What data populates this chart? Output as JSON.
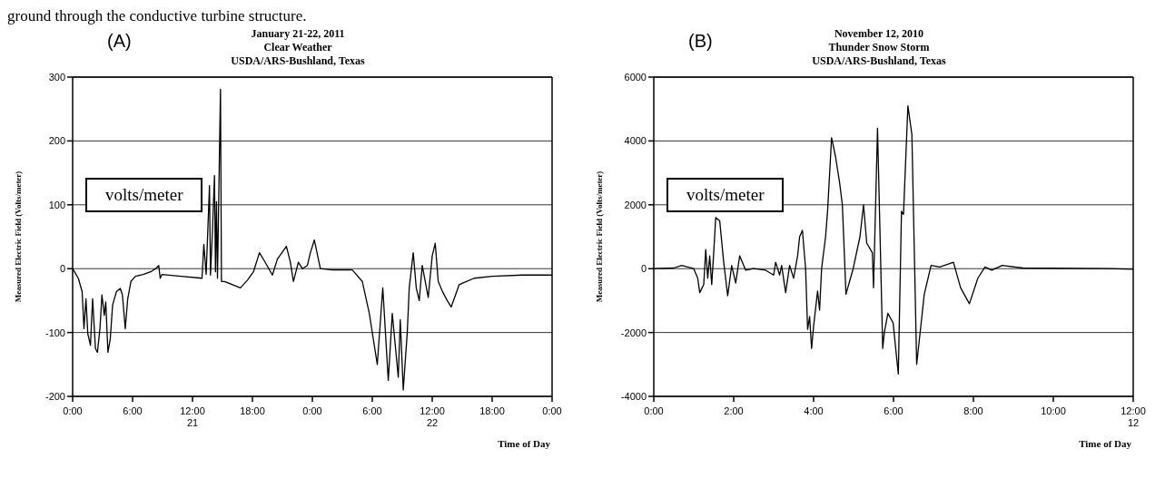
{
  "chart_data": [
    {
      "type": "line",
      "title": "January 21-22, 2011",
      "subtitle": "Clear Weather\nUSDA/ARS-Bushland, Texas",
      "xlabel": "Time of Day",
      "ylabel": "Measured Electric Field (Volts/meter)",
      "annotations": [
        "(A)",
        "volts/meter",
        "ground through the conductive turbine structure."
      ],
      "xlim": [
        "2011-01-21T00:00",
        "2011-01-23T00:00"
      ],
      "xticks": [
        {
          "value": "2011-01-21T00:00",
          "label": "0:00"
        },
        {
          "value": "2011-01-21T06:00",
          "label": "6:00"
        },
        {
          "value": "2011-01-21T12:00",
          "label": "12:00\n21"
        },
        {
          "value": "2011-01-21T18:00",
          "label": "18:00"
        },
        {
          "value": "2011-01-22T00:00",
          "label": "0:00"
        },
        {
          "value": "2011-01-22T06:00",
          "label": "6:00"
        },
        {
          "value": "2011-01-22T12:00",
          "label": "12:00\n22"
        },
        {
          "value": "2011-01-22T18:00",
          "label": "18:00"
        },
        {
          "value": "2011-01-23T00:00",
          "label": "0:00"
        }
      ],
      "ylim": [
        -200,
        300
      ],
      "yticks": [
        -200,
        -100,
        0,
        100,
        200,
        300
      ],
      "grid": "y",
      "legend": false,
      "marker": "none",
      "line_style": "solid",
      "series": [
        {
          "color": "#000000",
          "x": [
            "2011-01-21T00:00",
            "2011-01-21T00:34",
            "2011-01-21T00:57",
            "2011-01-21T01:08",
            "2011-01-21T01:20",
            "2011-01-21T01:31",
            "2011-01-21T01:47",
            "2011-01-21T02:00",
            "2011-01-21T02:17",
            "2011-01-21T02:29",
            "2011-01-21T02:44",
            "2011-01-21T02:56",
            "2011-01-21T03:10",
            "2011-01-21T03:19",
            "2011-01-21T03:32",
            "2011-01-21T03:46",
            "2011-01-21T04:00",
            "2011-01-21T04:23",
            "2011-01-21T04:46",
            "2011-01-21T04:59",
            "2011-01-21T05:16",
            "2011-01-21T05:31",
            "2011-01-21T05:50",
            "2011-01-21T06:17",
            "2011-01-21T07:03",
            "2011-01-21T07:49",
            "2011-01-21T08:23",
            "2011-01-21T08:37",
            "2011-01-21T08:46",
            "2011-01-21T08:57",
            "2011-01-21T10:52",
            "2011-01-21T12:57",
            "2011-01-21T13:08",
            "2011-01-21T13:22",
            "2011-01-21T13:42",
            "2011-01-21T13:48",
            "2011-01-21T14:00",
            "2011-01-21T14:12",
            "2011-01-21T14:18",
            "2011-01-21T14:24",
            "2011-01-21T14:30",
            "2011-01-21T14:48",
            "2011-01-21T14:54",
            "2011-01-21T15:12",
            "2011-01-21T16:00",
            "2011-01-21T16:48",
            "2011-01-21T17:30",
            "2011-01-21T18:06",
            "2011-01-21T18:42",
            "2011-01-21T19:12",
            "2011-01-21T20:00",
            "2011-01-21T20:30",
            "2011-01-21T21:24",
            "2011-01-21T21:48",
            "2011-01-21T22:06",
            "2011-01-21T22:36",
            "2011-01-21T23:00",
            "2011-01-21T23:30",
            "2011-01-21T23:48",
            "2011-01-22T00:12",
            "2011-01-22T00:48",
            "2011-01-22T02:00",
            "2011-01-22T04:00",
            "2011-01-22T05:00",
            "2011-01-22T05:42",
            "2011-01-22T06:30",
            "2011-01-22T07:03",
            "2011-01-22T07:36",
            "2011-01-22T08:00",
            "2011-01-22T08:36",
            "2011-01-22T08:48",
            "2011-01-22T09:06",
            "2011-01-22T09:30",
            "2011-01-22T09:42",
            "2011-01-22T10:06",
            "2011-01-22T10:24",
            "2011-01-22T10:42",
            "2011-01-22T11:00",
            "2011-01-22T11:36",
            "2011-01-22T12:00",
            "2011-01-22T12:18",
            "2011-01-22T12:36",
            "2011-01-22T13:00",
            "2011-01-22T13:30",
            "2011-01-22T13:54",
            "2011-01-22T14:42",
            "2011-01-22T16:12",
            "2011-01-22T18:00",
            "2011-01-22T21:00",
            "2011-01-23T00:00"
          ],
          "values": [
            0,
            -15,
            -36,
            -94,
            -47,
            -102,
            -120,
            -47,
            -125,
            -131,
            -94,
            -41,
            -73,
            -52,
            -131,
            -110,
            -57,
            -36,
            -31,
            -41,
            -94,
            -47,
            -20,
            -12,
            -9,
            -5,
            1,
            5,
            -15,
            -9,
            -12,
            -15,
            38,
            -9,
            130,
            -10,
            60,
            146,
            -5,
            105,
            -15,
            281,
            -20,
            -20,
            -25,
            -30,
            -18,
            -5,
            25,
            12,
            -10,
            15,
            35,
            10,
            -20,
            10,
            0,
            5,
            25,
            45,
            0,
            -2,
            -2,
            -20,
            -70,
            -150,
            -30,
            -175,
            -70,
            -170,
            -80,
            -190,
            -100,
            -30,
            25,
            -30,
            -50,
            5,
            -45,
            20,
            40,
            -20,
            -35,
            -50,
            -60,
            -25,
            -15,
            -12,
            -10,
            -10
          ]
        }
      ]
    },
    {
      "type": "line",
      "title": "November 12, 2010",
      "subtitle": "Thunder Snow Storm\nUSDA/ARS-Bushland, Texas",
      "xlabel": "Time of Day",
      "ylabel": "Measured Electric Field (Volts/meter)",
      "annotations": [
        "(B)",
        "volts/meter"
      ],
      "xlim": [
        0,
        12
      ],
      "xticks": [
        {
          "value": 0,
          "label": "0:00"
        },
        {
          "value": 2,
          "label": "2:00"
        },
        {
          "value": 4,
          "label": "4:00"
        },
        {
          "value": 6,
          "label": "6:00"
        },
        {
          "value": 8,
          "label": "8:00"
        },
        {
          "value": 10,
          "label": "10:00"
        },
        {
          "value": 12,
          "label": "12:00\n12"
        }
      ],
      "ylim": [
        -4000,
        6000
      ],
      "yticks": [
        -4000,
        -2000,
        0,
        2000,
        4000,
        6000
      ],
      "grid": "y",
      "legend": false,
      "marker": "none",
      "line_style": "solid",
      "series": [
        {
          "color": "#000000",
          "x": [
            0,
            0.5,
            0.7,
            1.0,
            1.1,
            1.15,
            1.25,
            1.3,
            1.35,
            1.4,
            1.45,
            1.5,
            1.55,
            1.65,
            1.75,
            1.85,
            1.95,
            2.05,
            2.15,
            2.3,
            2.5,
            2.8,
            3.0,
            3.05,
            3.15,
            3.2,
            3.3,
            3.4,
            3.5,
            3.6,
            3.65,
            3.72,
            3.8,
            3.85,
            3.9,
            3.95,
            4.0,
            4.1,
            4.15,
            4.2,
            4.3,
            4.35,
            4.45,
            4.55,
            4.65,
            4.72,
            4.81,
            4.99,
            5.16,
            5.25,
            5.33,
            5.47,
            5.5,
            5.6,
            5.73,
            5.77,
            5.86,
            5.99,
            6.12,
            6.2,
            6.25,
            6.36,
            6.46,
            6.58,
            6.77,
            6.94,
            7.16,
            7.5,
            7.68,
            7.9,
            8.11,
            8.29,
            8.46,
            8.72,
            9.24,
            11.33,
            12
          ],
          "values": [
            0,
            20,
            100,
            0,
            -300,
            -750,
            -500,
            600,
            -300,
            400,
            -500,
            500,
            1600,
            1500,
            200,
            -850,
            100,
            -450,
            400,
            -50,
            0,
            -50,
            -200,
            200,
            -200,
            100,
            -750,
            100,
            -300,
            400,
            1000,
            1200,
            0,
            -1900,
            -1500,
            -2500,
            -1800,
            -700,
            -1300,
            0,
            1000,
            1800,
            4100,
            3500,
            2700,
            2000,
            -800,
            0,
            1000,
            2000,
            800,
            500,
            -600,
            4400,
            -2500,
            -2000,
            -1400,
            -1700,
            -3300,
            1800,
            1700,
            5100,
            4200,
            -3000,
            -800,
            100,
            50,
            200,
            -600,
            -1100,
            -300,
            50,
            -50,
            100,
            20,
            0,
            -20
          ]
        }
      ]
    }
  ]
}
